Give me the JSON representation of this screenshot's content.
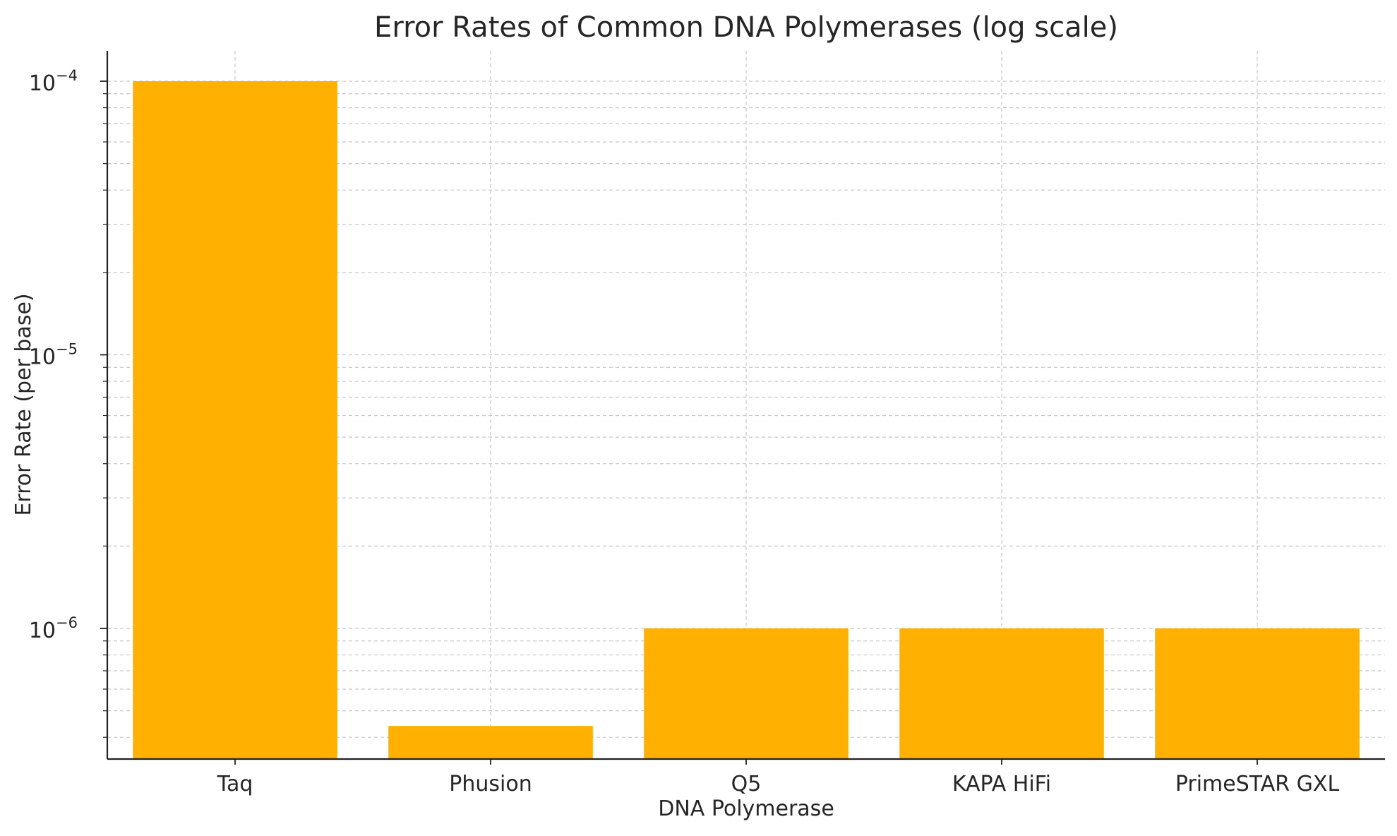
{
  "chart_data": {
    "type": "bar",
    "title": "Error Rates of Common DNA Polymerases (log scale)",
    "xlabel": "DNA Polymerase",
    "ylabel": "Error Rate (per base)",
    "yscale": "log",
    "ylim": [
      3.4e-07,
      0.00013
    ],
    "yticks": [
      {
        "value": 0.0001,
        "base": "10",
        "exp": "−4"
      },
      {
        "value": 1e-05,
        "base": "10",
        "exp": "−5"
      },
      {
        "value": 1e-06,
        "base": "10",
        "exp": "−6"
      }
    ],
    "grid": true,
    "bar_color": "#FFB000",
    "categories": [
      "Taq",
      "Phusion",
      "Q5",
      "KAPA HiFi",
      "PrimeSTAR GXL"
    ],
    "values": [
      0.0001,
      4.4e-07,
      1e-06,
      1e-06,
      1e-06
    ]
  }
}
